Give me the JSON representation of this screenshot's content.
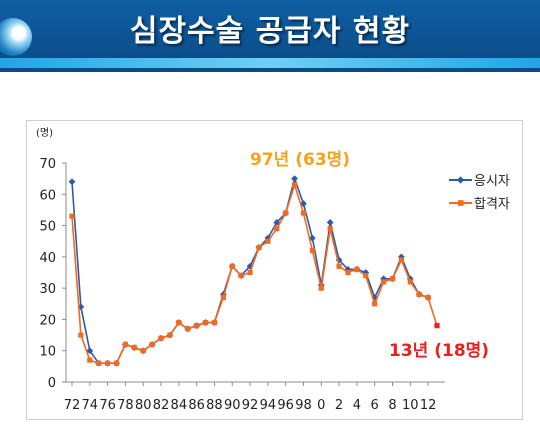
{
  "header": {
    "title": "심장수술 공급자 현황"
  },
  "chart_data": {
    "type": "line",
    "y_unit": "(명)",
    "ylim": [
      0,
      70
    ],
    "y_ticks": [
      0,
      10,
      20,
      30,
      40,
      50,
      60,
      70
    ],
    "x": [
      72,
      73,
      74,
      75,
      76,
      77,
      78,
      79,
      80,
      81,
      82,
      83,
      84,
      85,
      86,
      87,
      88,
      89,
      90,
      91,
      92,
      93,
      94,
      95,
      96,
      97,
      98,
      99,
      0,
      1,
      2,
      3,
      4,
      5,
      6,
      7,
      8,
      9,
      10,
      11,
      12,
      13
    ],
    "x_tick_labels": [
      "72",
      "74",
      "76",
      "78",
      "80",
      "82",
      "84",
      "86",
      "88",
      "90",
      "92",
      "94",
      "96",
      "98",
      "0",
      "2",
      "4",
      "6",
      "8",
      "10",
      "12"
    ],
    "series": [
      {
        "name": "응시자",
        "color": "#2e5aa8",
        "values": [
          64,
          24,
          10,
          6,
          6,
          6,
          12,
          11,
          10,
          12,
          14,
          15,
          19,
          17,
          18,
          19,
          19,
          28,
          37,
          34,
          37,
          43,
          46,
          51,
          54,
          65,
          57,
          46,
          31,
          51,
          39,
          36,
          36,
          35,
          27,
          33,
          33,
          40,
          33,
          28,
          27,
          null
        ]
      },
      {
        "name": "합격자",
        "color": "#f26a21",
        "values": [
          53,
          15,
          7,
          6,
          6,
          6,
          12,
          11,
          10,
          12,
          14,
          15,
          19,
          17,
          18,
          19,
          19,
          27,
          37,
          34,
          35,
          43,
          45,
          49,
          54,
          63,
          54,
          42,
          30,
          49,
          37,
          35,
          36,
          34,
          25,
          32,
          33,
          39,
          32,
          28,
          27,
          18
        ]
      }
    ],
    "annotations": [
      {
        "text": "97년 (63명)",
        "color": "#f5a31a"
      },
      {
        "text": "13년 (18명)",
        "color": "#e8211f"
      }
    ],
    "legend": "right"
  }
}
